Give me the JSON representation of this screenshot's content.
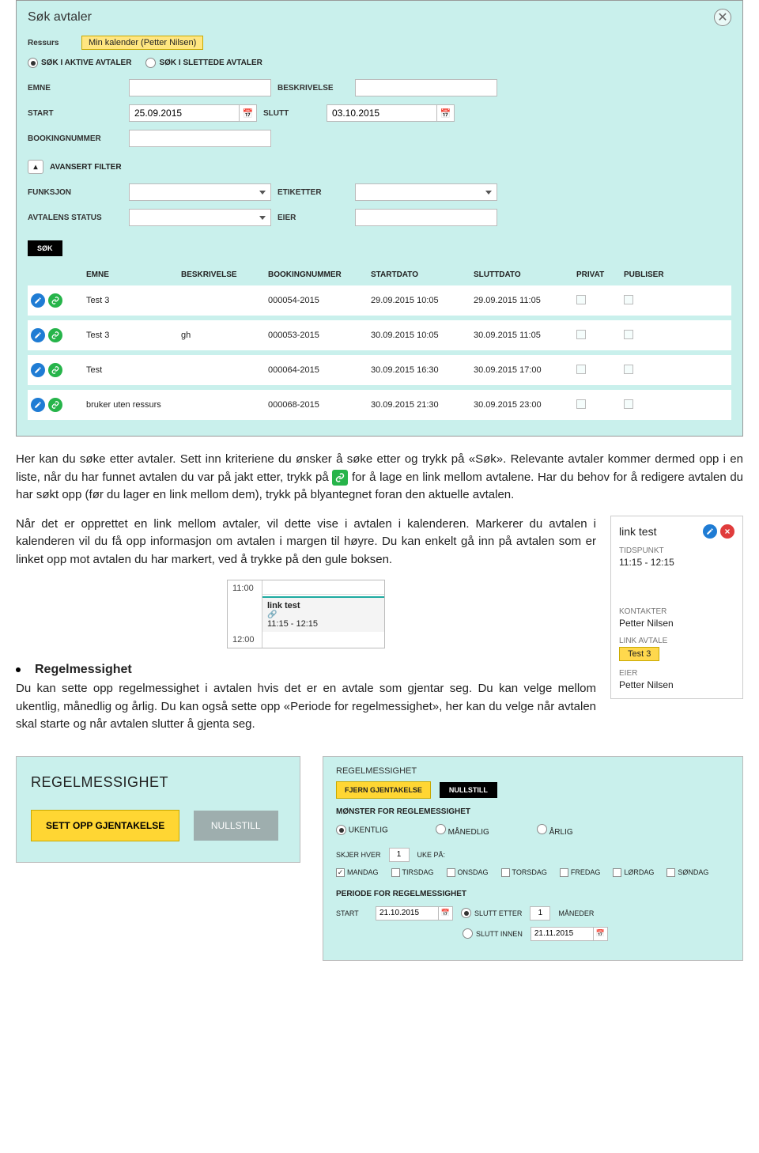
{
  "panel": {
    "title": "Søk avtaler",
    "ressurs_label": "Ressurs",
    "ressurs_value": "Min kalender (Petter Nilsen)",
    "radio1": "SØK I AKTIVE AVTALER",
    "radio2": "SØK I SLETTEDE AVTALER",
    "emne_label": "EMNE",
    "beskrivelse_label": "BESKRIVELSE",
    "start_label": "START",
    "start_value": "25.09.2015",
    "slutt_label": "SLUTT",
    "slutt_value": "03.10.2015",
    "booking_label": "BOOKINGNUMMER",
    "adv_label": "AVANSERT FILTER",
    "funksjon_label": "FUNKSJON",
    "etiketter_label": "ETIKETTER",
    "status_label": "AVTALENS STATUS",
    "eier_label": "EIER",
    "search_btn": "SØK"
  },
  "cols": {
    "c1": "EMNE",
    "c2": "BESKRIVELSE",
    "c3": "BOOKINGNUMMER",
    "c4": "STARTDATO",
    "c5": "SLUTTDATO",
    "c6": "PRIVAT",
    "c7": "PUBLISER"
  },
  "rows": [
    {
      "emne": "Test 3",
      "besk": "",
      "booking": "000054-2015",
      "start": "29.09.2015 10:05",
      "slutt": "29.09.2015 11:05"
    },
    {
      "emne": "Test 3",
      "besk": "gh",
      "booking": "000053-2015",
      "start": "30.09.2015 10:05",
      "slutt": "30.09.2015 11:05"
    },
    {
      "emne": "Test",
      "besk": "",
      "booking": "000064-2015",
      "start": "30.09.2015 16:30",
      "slutt": "30.09.2015 17:00"
    },
    {
      "emne": "bruker uten ressurs",
      "besk": "",
      "booking": "000068-2015",
      "start": "30.09.2015 21:30",
      "slutt": "30.09.2015 23:00"
    }
  ],
  "para1a": "Her kan du søke etter avtaler. Sett inn kriteriene du ønsker å søke etter og trykk på «Søk». Relevante avtaler kommer dermed opp i en liste, når du har funnet avtalen du var på jakt etter, trykk på ",
  "para1b": " for å lage en link mellom avtalene. Har du behov for å redigere avtalen du har søkt opp (før du lager en link mellom dem), trykk på blyantegnet foran den aktuelle avtalen.",
  "para2": "Når det er opprettet en link mellom avtaler, vil dette vise i avtalen i kalenderen. Markerer du avtalen i kalenderen vil du få opp informasjon om avtalen i margen til høyre. Du kan enkelt gå inn på avtalen som er linket opp mot avtalen du har markert, ved å trykke på den gule boksen.",
  "calSnip": {
    "t1": "11:00",
    "t2": "12:00",
    "title": "link test",
    "time": "11:15 - 12:15"
  },
  "side": {
    "title": "link test",
    "tidspunkt_label": "TIDSPUNKT",
    "tidspunkt": "11:15 - 12:15",
    "kontakter_label": "KONTAKTER",
    "kontakter": "Petter Nilsen",
    "link_label": "LINK AVTALE",
    "link_val": "Test 3",
    "eier_label": "EIER",
    "eier": "Petter Nilsen"
  },
  "sec": {
    "heading": "Regelmessighet",
    "para": "Du kan sette opp regelmessighet i avtalen hvis det er en avtale som gjentar seg. Du kan velge mellom ukentlig, månedlig og årlig. Du kan også sette opp «Periode for regelmessighet», her kan du velge når avtalen skal starte og når avtalen slutter å gjenta seg."
  },
  "boxReg": {
    "title": "REGELMESSIGHET",
    "btn1": "SETT OPP GJENTAKELSE",
    "btn2": "NULLSTILL"
  },
  "boxDetail": {
    "title": "REGELMESSIGHET",
    "b1": "FJERN GJENTAKELSE",
    "b2": "NULLSTILL",
    "sub1": "MØNSTER FOR REGLEMESSIGHET",
    "r1": "UKENTLIG",
    "r2": "MÅNEDLIG",
    "r3": "ÅRLIG",
    "skjer": "SKJER HVER",
    "skjer_val": "1",
    "uke": "UKE PÅ:",
    "d1": "MANDAG",
    "d2": "TIRSDAG",
    "d3": "ONSDAG",
    "d4": "TORSDAG",
    "d5": "FREDAG",
    "d6": "LØRDAG",
    "d7": "SØNDAG",
    "sub2": "PERIODE FOR REGELMESSIGHET",
    "start_l": "START",
    "start_v": "21.10.2015",
    "slutt_etter": "SLUTT ETTER",
    "slutt_etter_v": "1",
    "maneder": "MÅNEDER",
    "slutt_innen": "SLUTT INNEN",
    "slutt_innen_v": "21.11.2015"
  }
}
